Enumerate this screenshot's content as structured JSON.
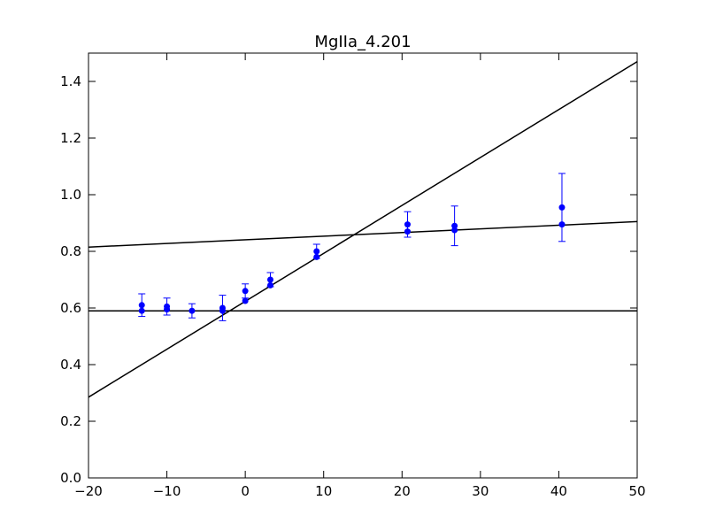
{
  "chart_data": {
    "type": "scatter",
    "title": "MgIIa_4.201",
    "xlabel": "",
    "ylabel": "",
    "xlim": [
      -20,
      50
    ],
    "ylim": [
      0.0,
      1.5
    ],
    "grid": false,
    "x_ticks": [
      -20,
      -10,
      0,
      10,
      20,
      30,
      40,
      50
    ],
    "x_tick_labels": [
      "−20",
      "−10",
      "0",
      "10",
      "20",
      "30",
      "40",
      "50"
    ],
    "y_ticks": [
      0.0,
      0.2,
      0.4,
      0.6,
      0.8,
      1.0,
      1.2,
      1.4
    ],
    "y_tick_labels": [
      "0.0",
      "0.2",
      "0.4",
      "0.6",
      "0.8",
      "1.0",
      "1.2",
      "1.4"
    ],
    "colors": {
      "points": "#0000ff",
      "lines": "#000000"
    },
    "series": [
      {
        "marker": "circle",
        "points": [
          {
            "x": -13.2,
            "y": 0.61,
            "err": 0.04
          },
          {
            "x": -13.2,
            "y": 0.59
          },
          {
            "x": -10.0,
            "y": 0.605,
            "err": 0.03
          },
          {
            "x": -10.0,
            "y": 0.595
          },
          {
            "x": -6.8,
            "y": 0.59,
            "err": 0.025
          },
          {
            "x": -2.9,
            "y": 0.6,
            "err": 0.045
          },
          {
            "x": -2.9,
            "y": 0.59
          },
          {
            "x": 0.0,
            "y": 0.66,
            "err": 0.025
          },
          {
            "x": 0.0,
            "y": 0.625
          },
          {
            "x": 3.2,
            "y": 0.7,
            "err": 0.025
          },
          {
            "x": 3.2,
            "y": 0.68
          },
          {
            "x": 9.1,
            "y": 0.8,
            "err": 0.025
          },
          {
            "x": 9.1,
            "y": 0.78
          },
          {
            "x": 20.7,
            "y": 0.895,
            "err": 0.045
          },
          {
            "x": 20.7,
            "y": 0.87
          },
          {
            "x": 26.7,
            "y": 0.89,
            "err": 0.07
          },
          {
            "x": 26.7,
            "y": 0.875
          },
          {
            "x": 40.4,
            "y": 0.955,
            "err": 0.12
          },
          {
            "x": 40.4,
            "y": 0.895
          }
        ]
      }
    ],
    "lines": [
      {
        "x": [
          -20,
          50
        ],
        "y": [
          0.59,
          0.59
        ]
      },
      {
        "x": [
          -20,
          50
        ],
        "y": [
          0.815,
          0.905
        ]
      },
      {
        "x": [
          -20,
          50
        ],
        "y": [
          0.285,
          1.47
        ]
      }
    ]
  }
}
